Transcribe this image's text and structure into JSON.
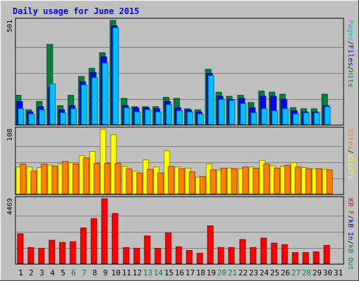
{
  "colors": {
    "background": "#C0C0C0",
    "frame_light": "#FFFFFF",
    "frame_dark": "#404040",
    "title": "#0000FF",
    "pages": "#00C0FF",
    "files": "#0000FF",
    "hits": "#008040",
    "visits": "#FFFF00",
    "sites": "#FF8000",
    "kb_in": "#0000FF",
    "kb_out": "#008040",
    "kb_f": "#FF0000",
    "weekend": "#008040",
    "weekday": "#000000"
  },
  "chart_data": {
    "type": "bar",
    "title": "Daily usage for June 2015",
    "categories": [
      "1",
      "2",
      "3",
      "4",
      "5",
      "6",
      "7",
      "8",
      "9",
      "10",
      "11",
      "12",
      "13",
      "14",
      "15",
      "16",
      "17",
      "18",
      "19",
      "20",
      "21",
      "22",
      "23",
      "24",
      "25",
      "26",
      "27",
      "28",
      "29",
      "30",
      "31"
    ],
    "weekend_days": [
      "6",
      "7",
      "13",
      "14",
      "20",
      "21",
      "27",
      "28"
    ],
    "panels": [
      {
        "ymax_label": "501",
        "ymax": 501,
        "legend": [
          {
            "text": "Pages",
            "color_key": "pages"
          },
          {
            "text": "/",
            "color_key": "weekday"
          },
          {
            "text": "Files",
            "color_key": "files"
          },
          {
            "text": "/",
            "color_key": "weekday"
          },
          {
            "text": "Hits",
            "color_key": "hits"
          }
        ],
        "series": [
          {
            "name": "Hits",
            "color_key": "hits",
            "values": [
              140,
              70,
              110,
              385,
              90,
              140,
              230,
              270,
              345,
              501,
              125,
              85,
              85,
              85,
              130,
              125,
              75,
              70,
              265,
              155,
              135,
              140,
              105,
              160,
              155,
              145,
              80,
              75,
              75,
              145,
              0
            ]
          },
          {
            "name": "Files",
            "color_key": "files",
            "values": [
              110,
              60,
              85,
              180,
              70,
              90,
              205,
              250,
              325,
              475,
              90,
              80,
              80,
              75,
              110,
              80,
              70,
              60,
              245,
              135,
              120,
              125,
              80,
              135,
              135,
              120,
              65,
              60,
              60,
              90,
              0
            ]
          },
          {
            "name": "Pages",
            "color_key": "pages",
            "values": [
              75,
              50,
              70,
              195,
              55,
              75,
              190,
              225,
              295,
              465,
              80,
              60,
              70,
              60,
              95,
              65,
              60,
              50,
              235,
              120,
              115,
              100,
              55,
              75,
              65,
              75,
              50,
              55,
              55,
              85,
              0
            ]
          }
        ]
      },
      {
        "ymax_label": "108",
        "ymax": 108,
        "legend": [
          {
            "text": "Sites",
            "color_key": "sites"
          },
          {
            "text": "/",
            "color_key": "weekday"
          },
          {
            "text": "Visits",
            "color_key": "visits"
          }
        ],
        "series": [
          {
            "name": "Visits",
            "color_key": "visits",
            "values": [
              45,
              45,
              44,
              48,
              50,
              52,
              64,
              71,
              108,
              99,
              46,
              38,
              57,
              45,
              72,
              45,
              43,
              28,
              50,
              40,
              43,
              42,
              45,
              56,
              47,
              46,
              52,
              44,
              42,
              41,
              0
            ]
          },
          {
            "name": "Sites",
            "color_key": "sites",
            "values": [
              50,
              38,
              50,
              46,
              54,
              50,
              60,
              51,
              51,
              51,
              42,
              35,
              41,
              35,
              46,
              42,
              37,
              29,
              40,
              43,
              42,
              45,
              43,
              50,
              43,
              48,
              45,
              42,
              42,
              40,
              0
            ]
          }
        ]
      },
      {
        "ymax_label": "4469",
        "ymax": 4469,
        "legend": [
          {
            "text": "KB F",
            "color_key": "kb_f"
          },
          {
            "text": "/",
            "color_key": "weekday"
          },
          {
            "text": "kB In",
            "color_key": "kb_in"
          },
          {
            "text": "/",
            "color_key": "weekday"
          },
          {
            "text": "kB Out",
            "color_key": "kb_out"
          }
        ],
        "series": [
          {
            "name": "KB F",
            "color_key": "kb_f",
            "values": [
              2050,
              1100,
              1050,
              1600,
              1450,
              1500,
              2450,
              3100,
              4469,
              3450,
              1100,
              1050,
              1900,
              1050,
              2100,
              1150,
              900,
              700,
              2600,
              1100,
              1100,
              1650,
              1100,
              1750,
              1400,
              1300,
              750,
              750,
              800,
              1250,
              0
            ]
          }
        ]
      }
    ]
  }
}
